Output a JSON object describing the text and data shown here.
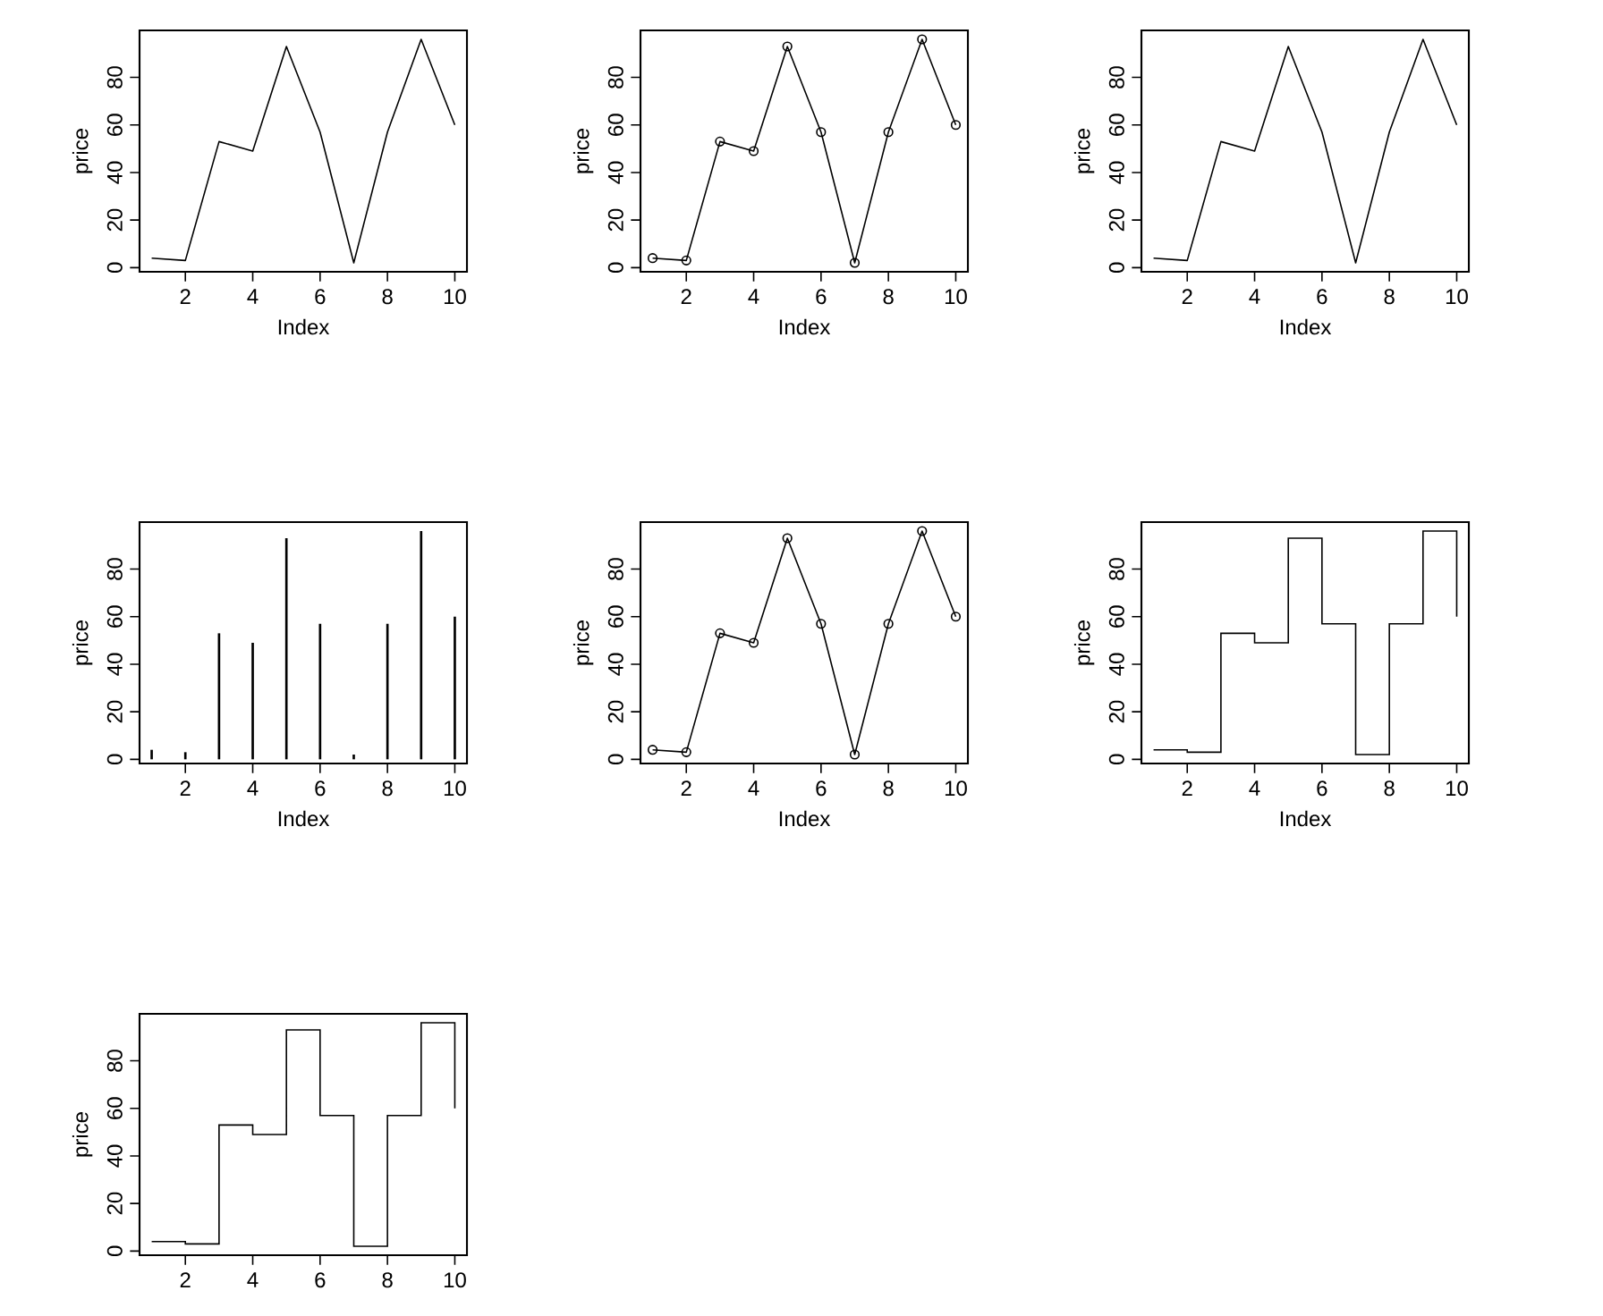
{
  "chart_data": [
    {
      "type": "line",
      "x": [
        1,
        2,
        3,
        4,
        5,
        6,
        7,
        8,
        9,
        10
      ],
      "values": [
        4,
        3,
        53,
        49,
        93,
        57,
        2,
        57,
        96,
        60
      ],
      "color": "#000000",
      "xlabel": "Index",
      "ylabel": "price",
      "xlim": [
        0.64,
        10.36
      ],
      "ylim": [
        -1.76,
        99.76
      ],
      "xticks": [
        2,
        4,
        6,
        8,
        10
      ],
      "yticks": [
        0,
        20,
        40,
        60,
        80
      ]
    },
    {
      "type": "line",
      "marker": "circle",
      "x": [
        1,
        2,
        3,
        4,
        5,
        6,
        7,
        8,
        9,
        10
      ],
      "values": [
        4,
        3,
        53,
        49,
        93,
        57,
        2,
        57,
        96,
        60
      ],
      "color": "#000000",
      "xlabel": "Index",
      "ylabel": "price",
      "xlim": [
        0.64,
        10.36
      ],
      "ylim": [
        -1.76,
        99.76
      ],
      "xticks": [
        2,
        4,
        6,
        8,
        10
      ],
      "yticks": [
        0,
        20,
        40,
        60,
        80
      ]
    },
    {
      "type": "line",
      "x": [
        1,
        2,
        3,
        4,
        5,
        6,
        7,
        8,
        9,
        10
      ],
      "values": [
        4,
        3,
        53,
        49,
        93,
        57,
        2,
        57,
        96,
        60
      ],
      "color": "#000000",
      "xlabel": "Index",
      "ylabel": "price",
      "xlim": [
        0.64,
        10.36
      ],
      "ylim": [
        -1.76,
        99.76
      ],
      "xticks": [
        2,
        4,
        6,
        8,
        10
      ],
      "yticks": [
        0,
        20,
        40,
        60,
        80
      ]
    },
    {
      "type": "bar",
      "x": [
        1,
        2,
        3,
        4,
        5,
        6,
        7,
        8,
        9,
        10
      ],
      "values": [
        4,
        3,
        53,
        49,
        93,
        57,
        2,
        57,
        96,
        60
      ],
      "color": "#000000",
      "xlabel": "Index",
      "ylabel": "price",
      "xlim": [
        0.64,
        10.36
      ],
      "ylim": [
        -1.76,
        99.76
      ],
      "xticks": [
        2,
        4,
        6,
        8,
        10
      ],
      "yticks": [
        0,
        20,
        40,
        60,
        80
      ]
    },
    {
      "type": "line",
      "marker": "circle",
      "x": [
        1,
        2,
        3,
        4,
        5,
        6,
        7,
        8,
        9,
        10
      ],
      "values": [
        4,
        3,
        53,
        49,
        93,
        57,
        2,
        57,
        96,
        60
      ],
      "color": "#000000",
      "xlabel": "Index",
      "ylabel": "price",
      "xlim": [
        0.64,
        10.36
      ],
      "ylim": [
        -1.76,
        99.76
      ],
      "xticks": [
        2,
        4,
        6,
        8,
        10
      ],
      "yticks": [
        0,
        20,
        40,
        60,
        80
      ]
    },
    {
      "type": "step",
      "x": [
        1,
        2,
        3,
        4,
        5,
        6,
        7,
        8,
        9,
        10
      ],
      "values": [
        4,
        3,
        53,
        49,
        93,
        57,
        2,
        57,
        96,
        60
      ],
      "color": "#000000",
      "xlabel": "Index",
      "ylabel": "price",
      "xlim": [
        0.64,
        10.36
      ],
      "ylim": [
        -1.76,
        99.76
      ],
      "xticks": [
        2,
        4,
        6,
        8,
        10
      ],
      "yticks": [
        0,
        20,
        40,
        60,
        80
      ]
    },
    {
      "type": "step",
      "x": [
        1,
        2,
        3,
        4,
        5,
        6,
        7,
        8,
        9,
        10
      ],
      "values": [
        4,
        3,
        53,
        49,
        93,
        57,
        2,
        57,
        96,
        60
      ],
      "color": "#000000",
      "ylabel": "price",
      "xlim": [
        0.64,
        10.36
      ],
      "ylim": [
        -1.76,
        99.76
      ],
      "xticks": [
        2,
        4,
        6,
        8,
        10
      ],
      "yticks": [
        0,
        20,
        40,
        60,
        80
      ]
    }
  ]
}
